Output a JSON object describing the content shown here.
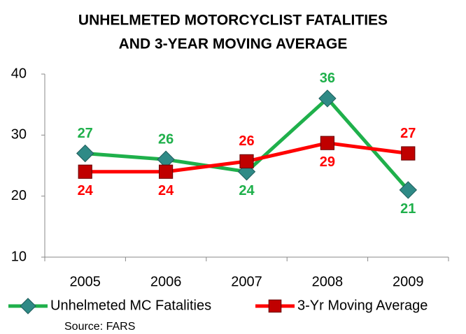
{
  "chart_data": {
    "type": "line",
    "title": [
      "UNHELMETED MOTORCYCLIST FATALITIES",
      "AND 3-YEAR MOVING AVERAGE"
    ],
    "categories": [
      "2005",
      "2006",
      "2007",
      "2008",
      "2009"
    ],
    "series": [
      {
        "name": "Unhelmeted MC Fatalities",
        "color": "#1fb04b",
        "marker": "diamond",
        "marker_color": "#2f8a86",
        "values": [
          27,
          26,
          24,
          36,
          21
        ],
        "value_labels": [
          "27",
          "26",
          "24",
          "36",
          "21"
        ]
      },
      {
        "name": "3-Yr Moving Average",
        "color": "#ff0000",
        "marker": "square",
        "marker_color": "#c00000",
        "values": [
          24,
          24,
          25.7,
          28.7,
          27
        ],
        "value_labels": [
          "24",
          "24",
          "26",
          "29",
          "27"
        ]
      }
    ],
    "ylim": [
      10,
      40
    ],
    "yticks": [
      10,
      20,
      30,
      40
    ],
    "grid": false,
    "legend": "bottom",
    "note": "Source:  FARS"
  }
}
